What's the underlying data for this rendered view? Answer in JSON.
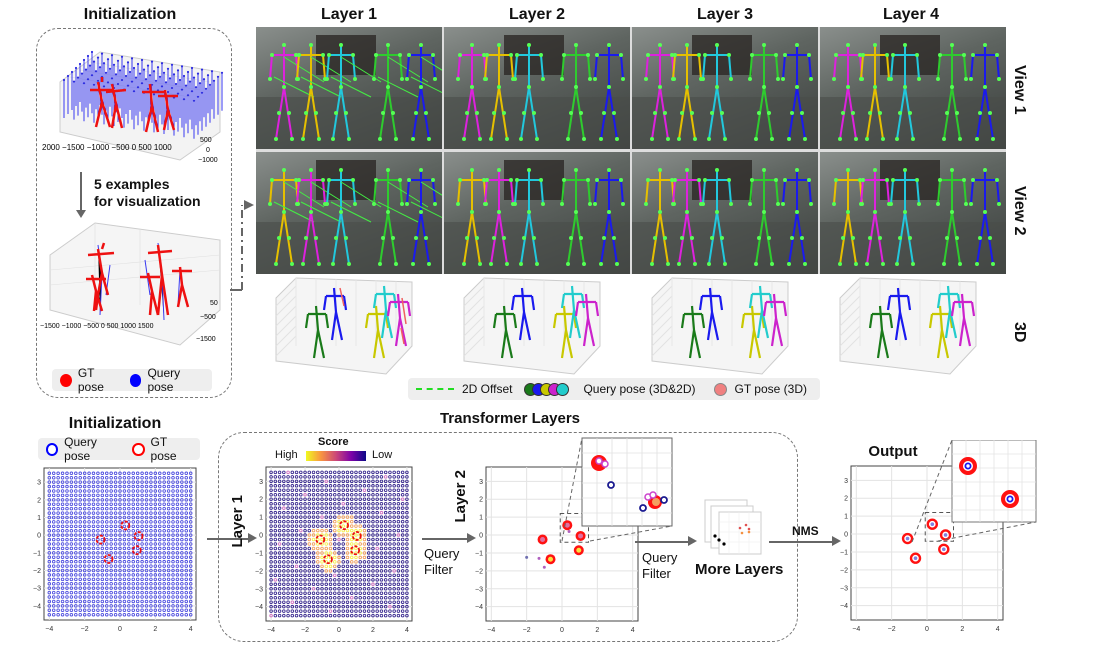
{
  "top": {
    "init_title": "Initialization",
    "examples_caption_1": "5 examples",
    "examples_caption_2": "for visualization",
    "init_plot1_xticks": [
      "2000",
      "−1500",
      "−1000",
      "−500",
      "0",
      "500",
      "1000"
    ],
    "init_plot1_yticks": [
      "500",
      "0",
      "−500",
      "−1000"
    ],
    "init_plot2_xticks": [
      "−1500",
      "−1000",
      "−500",
      "0",
      "500",
      "1000",
      "1500"
    ],
    "init_plot2_yticks": [
      "500",
      "0",
      "−500",
      "−1000",
      "−1500"
    ],
    "legend": [
      {
        "label": "GT pose",
        "color": "#ff0000"
      },
      {
        "label": "Query pose",
        "color": "#0000ff"
      }
    ],
    "layers": [
      "Layer 1",
      "Layer 2",
      "Layer 3",
      "Layer 4"
    ],
    "row_labels": [
      "View 1",
      "View 2",
      "3D"
    ],
    "bottom_legend": {
      "offset_label": "2D Offset",
      "query_label": "Query pose (3D&2D)",
      "gt_label": "GT pose (3D)",
      "offset_color": "#22dd22",
      "query_colors": [
        "#1a7a1a",
        "#1a1aee",
        "#c8c800",
        "#cc22cc",
        "#22cccc"
      ],
      "gt_color": "#f08080"
    },
    "skeleton_colors": {
      "green": "#2ecc2e",
      "yellow": "#e6c000",
      "magenta": "#dd22dd",
      "cyan": "#22c8dd",
      "blue": "#1a1aee",
      "joint": "#55ff55"
    }
  },
  "bottom": {
    "init_title": "Initialization",
    "legend": [
      {
        "label": "Query pose",
        "color": "#0000ff"
      },
      {
        "label": "GT pose",
        "color": "#ff0000"
      }
    ],
    "transformer_title": "Transformer Layers",
    "score_label": "Score",
    "score_high": "High",
    "score_low": "Low",
    "layer1_label": "Layer 1",
    "layer2_label": "Layer 2",
    "query_filter_1": "Query",
    "query_filter_2": "Filter",
    "more_layers": "More Layers",
    "nms_label": "NMS",
    "output_title": "Output",
    "xticks": [
      "−4",
      "−2",
      "0",
      "2",
      "4"
    ],
    "yticks": [
      "3",
      "2",
      "1",
      "0",
      "−1",
      "−2",
      "−3",
      "−4"
    ]
  },
  "chart_data": [
    {
      "type": "scatter",
      "title": "Initialization",
      "xlabel": "",
      "ylabel": "",
      "xlim": [
        -4.2,
        4.2
      ],
      "ylim": [
        -4.8,
        3.8
      ],
      "grid": true,
      "series": [
        {
          "name": "Query pose",
          "description": "uniform grid of anchors from -4 to 4 (x) and -4.5 to 3.5 (y)",
          "color": "#0000ff"
        },
        {
          "name": "GT pose",
          "x": [
            0.3,
            1.05,
            -1.1,
            0.95,
            -0.65
          ],
          "y": [
            0.55,
            -0.05,
            -0.25,
            -0.85,
            -1.35
          ],
          "color": "#ff0000"
        }
      ]
    },
    {
      "type": "scatter",
      "title": "Layer 1",
      "xlim": [
        -4.2,
        4.2
      ],
      "ylim": [
        -4.8,
        3.8
      ],
      "colorbar": {
        "label": "Score",
        "high": "High",
        "low": "Low",
        "colormap": "plasma_r"
      },
      "series": [
        {
          "name": "GT pose",
          "x": [
            0.3,
            1.05,
            -1.1,
            0.95,
            -0.65
          ],
          "y": [
            0.55,
            -0.05,
            -0.25,
            -0.85,
            -1.35
          ]
        }
      ]
    },
    {
      "type": "scatter",
      "title": "Layer 2",
      "xlim": [
        -4.2,
        4.2
      ],
      "ylim": [
        -4.8,
        3.8
      ],
      "series": [
        {
          "name": "GT pose",
          "x": [
            0.3,
            1.05,
            -1.1,
            0.95,
            -0.65
          ],
          "y": [
            0.55,
            -0.05,
            -0.25,
            -0.85,
            -1.35
          ]
        },
        {
          "name": "Low-score queries",
          "x": [
            -2.0,
            -1.3,
            -1.0,
            0.4
          ],
          "y": [
            -1.25,
            -1.3,
            -1.8,
            0.2
          ]
        }
      ]
    },
    {
      "type": "scatter",
      "title": "Output",
      "xlim": [
        -4.2,
        4.2
      ],
      "ylim": [
        -4.8,
        3.8
      ],
      "series": [
        {
          "name": "GT pose",
          "x": [
            0.3,
            1.05,
            -1.1,
            0.95,
            -0.65
          ],
          "y": [
            0.55,
            -0.05,
            -0.25,
            -0.85,
            -1.35
          ]
        },
        {
          "name": "Query pose",
          "x": [
            0.3,
            1.05,
            -1.1,
            0.95,
            -0.65
          ],
          "y": [
            0.55,
            -0.05,
            -0.25,
            -0.85,
            -1.35
          ]
        }
      ]
    }
  ]
}
